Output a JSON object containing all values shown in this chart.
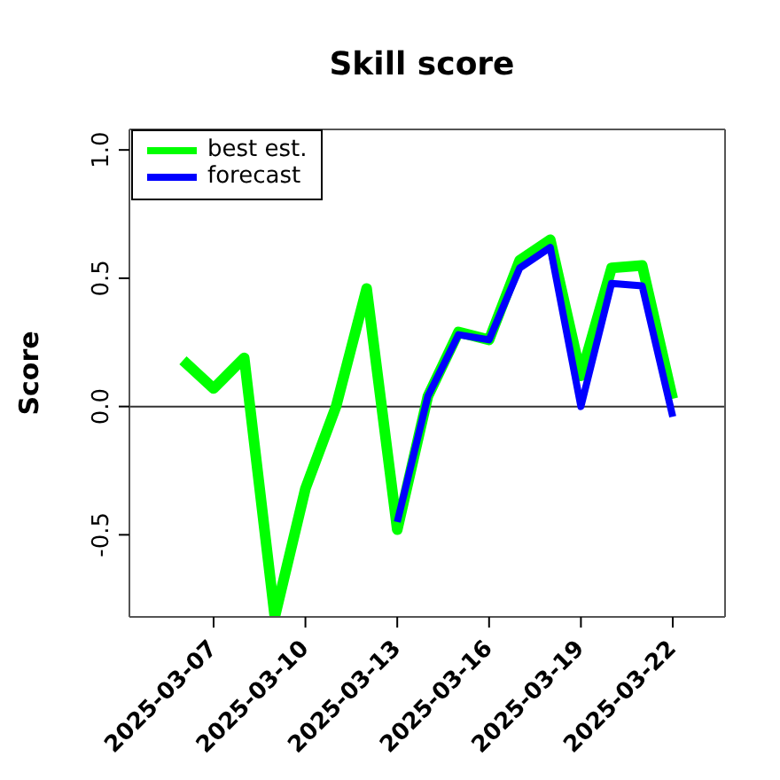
{
  "chart_data": {
    "type": "line",
    "title": "Skill score",
    "ylabel": "Score",
    "x": [
      "2025-03-06",
      "2025-03-07",
      "2025-03-08",
      "2025-03-09",
      "2025-03-10",
      "2025-03-11",
      "2025-03-12",
      "2025-03-13",
      "2025-03-14",
      "2025-03-15",
      "2025-03-16",
      "2025-03-17",
      "2025-03-18",
      "2025-03-19",
      "2025-03-20",
      "2025-03-21",
      "2025-03-22"
    ],
    "series": [
      {
        "name": "best est.",
        "color": "#00ff00",
        "values": [
          0.18,
          0.07,
          0.19,
          -0.82,
          -0.32,
          0.0,
          0.46,
          -0.48,
          0.04,
          0.29,
          0.26,
          0.57,
          0.65,
          0.12,
          0.54,
          0.55,
          0.03
        ]
      },
      {
        "name": "forecast",
        "color": "#0000ff",
        "values": [
          null,
          null,
          null,
          null,
          null,
          null,
          null,
          -0.45,
          0.04,
          0.28,
          0.26,
          0.54,
          0.62,
          0.0,
          0.48,
          0.47,
          -0.04
        ]
      }
    ],
    "xlim": [
      "2025-03-04T06:00",
      "2025-03-23T17:00"
    ],
    "xticks": [
      "2025-03-07",
      "2025-03-10",
      "2025-03-13",
      "2025-03-16",
      "2025-03-19",
      "2025-03-22"
    ],
    "ylim": [
      -0.82,
      1.08
    ],
    "yticks": [
      -0.5,
      {
        "value": 0,
        "label": "0.0"
      },
      0.5,
      {
        "value": 1,
        "label": "1.0"
      }
    ],
    "ref_lines": [
      {
        "axis": "y",
        "value": 0,
        "color": "#333333"
      }
    ],
    "grid": false,
    "legend": "top left",
    "marker": "none",
    "line_style": "solid"
  }
}
